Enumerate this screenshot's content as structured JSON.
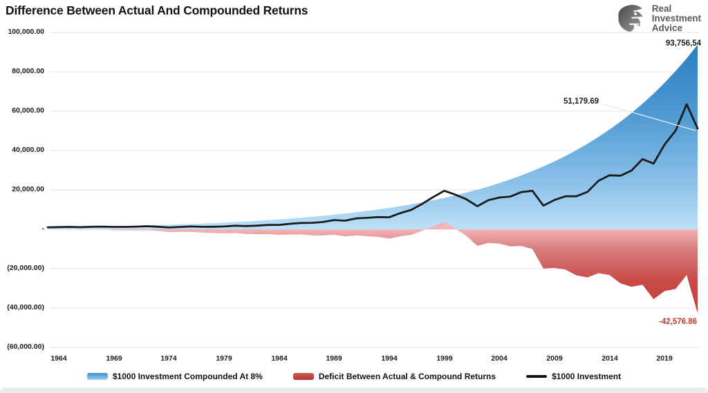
{
  "header": {
    "title": "Difference Between Actual And Compounded Returns",
    "logo": {
      "lines": [
        "Real",
        "Investment",
        "Advice"
      ]
    }
  },
  "colors": {
    "blue_top": "#2878BF",
    "blue_mid": "#4E9AD3",
    "blue_low": "#8FC3EA",
    "blue_zero": "#BCE0F8",
    "red_zero": "#F4B3B5",
    "red_high": "#D87E80",
    "red_mid": "#C94A47",
    "red_deep": "#BE332E",
    "line": "#1B1B1B",
    "grid": "#E3E3E3",
    "leader": "#E9E9E9",
    "annotation_red": "#C0392B",
    "text": "#1A1A1A",
    "logo_gray": "#58595B"
  },
  "chart_data": {
    "type": "area",
    "title": "Difference Between Actual And Compounded Returns",
    "xlabel": "",
    "ylabel": "",
    "ylim": [
      -60000,
      100000
    ],
    "grid": "horizontal-faint",
    "legend_position": "bottom",
    "x": [
      1963,
      1964,
      1965,
      1966,
      1967,
      1968,
      1969,
      1970,
      1971,
      1972,
      1973,
      1974,
      1975,
      1976,
      1977,
      1978,
      1979,
      1980,
      1981,
      1982,
      1983,
      1984,
      1985,
      1986,
      1987,
      1988,
      1989,
      1990,
      1991,
      1992,
      1993,
      1994,
      1995,
      1996,
      1997,
      1998,
      1999,
      2000,
      2001,
      2002,
      2003,
      2004,
      2005,
      2006,
      2007,
      2008,
      2009,
      2010,
      2011,
      2012,
      2013,
      2014,
      2015,
      2016,
      2017,
      2018,
      2019,
      2020,
      2021,
      2022
    ],
    "xtick_labels": [
      "1964",
      "1969",
      "1974",
      "1979",
      "1984",
      "1989",
      "1994",
      "1999",
      "2004",
      "2009",
      "2014",
      "2019"
    ],
    "ytick_values": [
      100000,
      80000,
      60000,
      40000,
      20000,
      0,
      -20000,
      -40000,
      -60000
    ],
    "ytick_labels": [
      "100,000.00",
      "80,000.00",
      "60,000.00",
      "40,000.00",
      "20,000.00",
      "-",
      "(20,000.00)",
      "(40,000.00)",
      "(60,000.00)"
    ],
    "series": [
      {
        "name": "$1000 Investment Compounded At 8%",
        "type": "area",
        "values": [
          1000.0,
          1080.0,
          1166.4,
          1259.71,
          1360.49,
          1469.33,
          1586.87,
          1713.82,
          1850.93,
          1999.0,
          2158.92,
          2331.64,
          2518.17,
          2719.62,
          2937.19,
          3172.17,
          3425.94,
          3700.02,
          3996.02,
          4315.7,
          4660.96,
          5033.83,
          5436.54,
          5871.46,
          6341.18,
          6848.48,
          7396.35,
          7988.06,
          8627.11,
          9317.27,
          10062.66,
          10867.67,
          11737.08,
          12676.05,
          13690.13,
          14785.34,
          15968.17,
          17245.63,
          18625.28,
          20115.3,
          21724.52,
          23462.48,
          25339.48,
          27366.64,
          29555.97,
          31920.45,
          34474.08,
          37232.01,
          40210.57,
          43427.42,
          46901.61,
          50653.74,
          54706.04,
          59082.52,
          63809.13,
          68913.86,
          74426.96,
          80381.12,
          86811.61,
          93756.54
        ]
      },
      {
        "name": "Deficit Between Actual & Compound Returns",
        "type": "area",
        "values": [
          0.0,
          49.7,
          65.67,
          -188.93,
          -74.57,
          -84.9,
          -359.73,
          -485.48,
          -490.09,
          -425.42,
          -858.6,
          -1417.75,
          -1315.96,
          -1287.2,
          -1669.53,
          -1891.05,
          -1987.12,
          -1890.37,
          -2362.46,
          -2441.0,
          -2462.48,
          -2804.56,
          -2620.22,
          -2643.39,
          -3047.66,
          -3146.53,
          -2685.61,
          -3586.3,
          -3067.39,
          -3509.35,
          -3844.98,
          -4745.7,
          -3526.87,
          -2802.15,
          -754.51,
          1600.02,
          3616.61,
          353.41,
          -3321.63,
          -8387.49,
          -6902.87,
          -7307.85,
          -8700.05,
          -8461.01,
          -9983.06,
          -19880.33,
          -19610.04,
          -20467.95,
          -23447.04,
          -24416.62,
          -22263.38,
          -23209.06,
          -27460.77,
          -29239.41,
          -28170.5,
          -35497.97,
          -31361.38,
          -30313.54,
          -23279.22,
          -42576.85
        ]
      },
      {
        "name": "$1000 Investment",
        "type": "line",
        "values": [
          1000.0,
          1129.7,
          1232.07,
          1070.78,
          1285.92,
          1384.43,
          1227.14,
          1228.34,
          1360.84,
          1573.58,
          1300.32,
          913.89,
          1202.21,
          1432.42,
          1267.66,
          1281.12,
          1438.82,
          1809.65,
          1633.56,
          1874.7,
          2198.48,
          2229.27,
          2816.32,
          3228.07,
          3293.52,
          3701.95,
          4710.74,
          4401.76,
          5559.72,
          5807.92,
          6217.68,
          6121.97,
          8210.21,
          9873.9,
          12935.62,
          16385.36,
          19584.78,
          17599.04,
          15303.65,
          11727.81,
          14821.65,
          16154.63,
          16639.43,
          18905.63,
          19572.91,
          12040.12,
          14864.04,
          16764.06,
          16763.53,
          19010.8,
          24638.23,
          27444.68,
          27245.27,
          29843.11,
          35638.63,
          33415.89,
          43065.58,
          50067.58,
          63532.39,
          51179.69
        ]
      }
    ],
    "annotations": [
      {
        "key": "compound-end-value",
        "text": "93,756,54",
        "x": 1014,
        "y": 57,
        "align": "right",
        "color": "#1A1A1A"
      },
      {
        "key": "actual-end-value",
        "text": "51,179.69",
        "x": 815,
        "y": 141,
        "align": "left",
        "color": "#1A1A1A",
        "leader": [
          874,
          151,
          1006,
          189
        ]
      },
      {
        "key": "deficit-end-value",
        "text": "-42,576.86",
        "x": 1008,
        "y": 460,
        "align": "right",
        "color": "#C0392B"
      }
    ]
  },
  "legend": {
    "items": [
      {
        "label": "$1000 Investment Compounded At 8%",
        "swatch": "blue-area"
      },
      {
        "label": "Deficit Between Actual & Compound Returns",
        "swatch": "red-area"
      },
      {
        "label": "$1000 Investment",
        "swatch": "black-line"
      }
    ]
  }
}
